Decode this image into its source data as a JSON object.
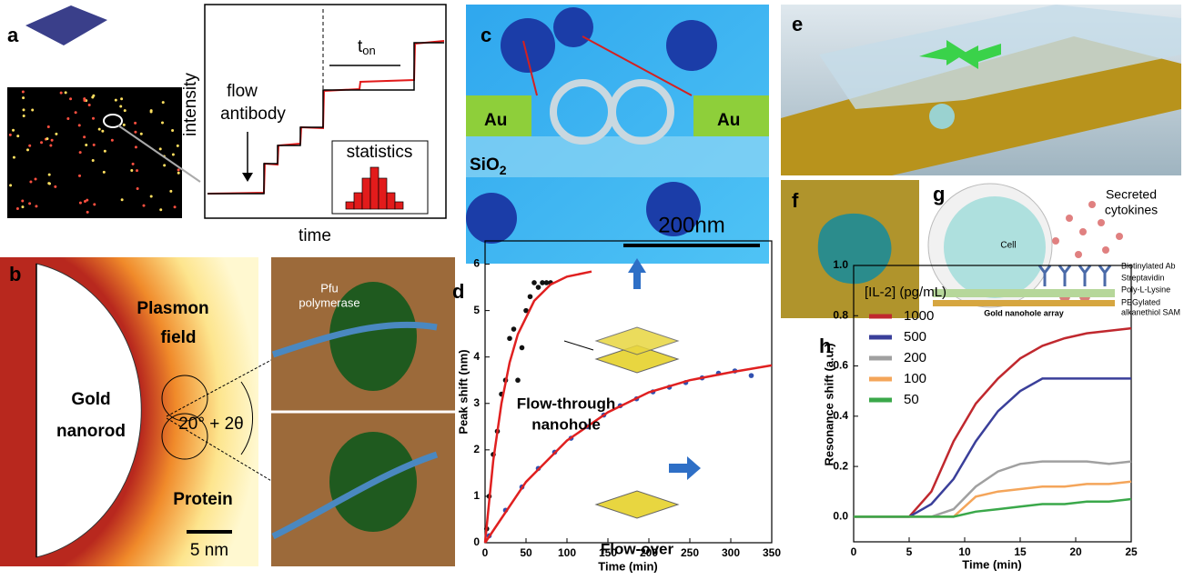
{
  "panels": {
    "a": {
      "label": "a",
      "flow": "flow",
      "antibody": "antibody",
      "y_axis": "intensity",
      "x_axis": "time",
      "t": "t",
      "t_sub": "on",
      "inset": "statistics"
    },
    "b": {
      "label": "b",
      "plasmon": "Plasmon",
      "field": "field",
      "gold": "Gold",
      "nanorod": "nanorod",
      "angle": "20° + 2θ",
      "protein": "Protein",
      "scale": "5 nm",
      "pfu": "Pfu",
      "polymerase": "polymerase"
    },
    "c": {
      "label": "c",
      "au_left": "Au",
      "au_right": "Au",
      "sio": "SiO",
      "sio_sub": "2",
      "scale": "200nm"
    },
    "e": {
      "label": "e"
    },
    "f": {
      "label": "f"
    },
    "g": {
      "label": "g",
      "secreted": "Secreted",
      "cytokines": "cytokines",
      "cell": "Cell",
      "layers": [
        "Biotinylated Ab",
        "Streptavidin",
        "Poly-L-Lysine",
        "PEGylated",
        "alkanethiol SAM"
      ],
      "array": "Gold nanohole array"
    }
  },
  "chart_data": [
    {
      "type": "line",
      "panel_label": "d",
      "x_label": "Time (min)",
      "y_label": "Peak shift (nm)",
      "xlim": [
        0,
        350
      ],
      "ylim": [
        0,
        6.5
      ],
      "xticks": [
        0,
        50,
        100,
        150,
        200,
        250,
        300,
        350
      ],
      "yticks": [
        0,
        1,
        2,
        3,
        4,
        5,
        6
      ],
      "annotations": [
        "Flow-through",
        "nanohole",
        "Flow-over"
      ],
      "series": [
        {
          "color": "#111111",
          "marker": true,
          "x": [
            2,
            5,
            10,
            15,
            20,
            25,
            30,
            35,
            40,
            45,
            50,
            55,
            60,
            65,
            70,
            75,
            80
          ],
          "values": [
            0.3,
            1.0,
            1.9,
            2.4,
            3.2,
            3.5,
            4.4,
            4.6,
            3.5,
            4.2,
            5.0,
            5.3,
            5.6,
            5.5,
            5.6,
            5.6,
            5.6
          ]
        },
        {
          "color": "#e02020",
          "marker": false,
          "x": [
            0,
            10,
            20,
            30,
            40,
            60,
            80,
            100,
            130
          ],
          "values": [
            0,
            1.77,
            3.0,
            3.88,
            4.49,
            5.21,
            5.56,
            5.73,
            5.84
          ]
        },
        {
          "color": "#3050b0",
          "marker": true,
          "x": [
            5,
            25,
            45,
            65,
            85,
            105,
            125,
            145,
            165,
            185,
            205,
            225,
            245,
            265,
            285,
            305,
            325
          ],
          "values": [
            0.15,
            0.7,
            1.2,
            1.6,
            1.95,
            2.25,
            2.5,
            2.75,
            2.95,
            3.1,
            3.25,
            3.35,
            3.45,
            3.55,
            3.65,
            3.7,
            3.6
          ]
        },
        {
          "color": "#e02020",
          "marker": false,
          "x": [
            0,
            50,
            100,
            150,
            200,
            250,
            300,
            350
          ],
          "values": [
            0,
            1.31,
            2.2,
            2.81,
            3.24,
            3.5,
            3.67,
            3.82
          ]
        }
      ]
    },
    {
      "type": "line",
      "panel_label": "h",
      "x_label": "Time (min)",
      "y_label": "Resonance shift (a.u.)",
      "legend_title": "[IL-2] (pg/mL)",
      "xlim": [
        0,
        25
      ],
      "ylim": [
        -0.1,
        1.0
      ],
      "xticks": [
        0,
        5,
        10,
        15,
        20,
        25
      ],
      "yticks": [
        {
          "value": 0,
          "label": "0.0"
        },
        0.2,
        0.4,
        0.6,
        0.8,
        {
          "value": 1,
          "label": "1.0"
        }
      ],
      "series": [
        {
          "name": "1000",
          "color": "#c0282e",
          "marker": false,
          "x": [
            0,
            5,
            7,
            9,
            11,
            13,
            15,
            17,
            19,
            21,
            23,
            25
          ],
          "values": [
            0,
            0,
            0.1,
            0.3,
            0.45,
            0.55,
            0.63,
            0.68,
            0.71,
            0.73,
            0.74,
            0.75
          ]
        },
        {
          "name": "500",
          "color": "#3a3f9a",
          "marker": false,
          "x": [
            0,
            5,
            7,
            9,
            11,
            13,
            15,
            17,
            19,
            21,
            23,
            25
          ],
          "values": [
            0,
            0,
            0.05,
            0.15,
            0.3,
            0.42,
            0.5,
            0.55,
            0.55,
            0.55,
            0.55,
            0.55
          ]
        },
        {
          "name": "200",
          "color": "#a0a0a0",
          "marker": false,
          "x": [
            0,
            5,
            7,
            9,
            11,
            13,
            15,
            17,
            19,
            21,
            23,
            25
          ],
          "values": [
            0,
            0,
            0,
            0.03,
            0.12,
            0.18,
            0.21,
            0.22,
            0.22,
            0.22,
            0.21,
            0.22
          ]
        },
        {
          "name": "100",
          "color": "#f4a55a",
          "marker": false,
          "x": [
            0,
            5,
            7,
            9,
            11,
            13,
            15,
            17,
            19,
            21,
            23,
            25
          ],
          "values": [
            0,
            0,
            0,
            0,
            0.08,
            0.1,
            0.11,
            0.12,
            0.12,
            0.13,
            0.13,
            0.14
          ]
        },
        {
          "name": "50",
          "color": "#3aa84a",
          "marker": false,
          "x": [
            0,
            5,
            7,
            9,
            11,
            13,
            15,
            17,
            19,
            21,
            23,
            25
          ],
          "values": [
            0,
            0,
            0,
            0,
            0.02,
            0.03,
            0.04,
            0.05,
            0.05,
            0.06,
            0.06,
            0.07
          ]
        }
      ]
    }
  ]
}
